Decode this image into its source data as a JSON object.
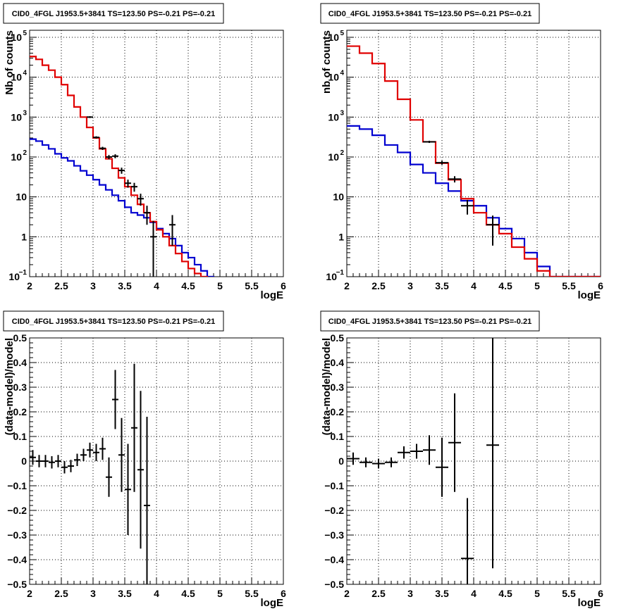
{
  "colors": {
    "model": "#e00000",
    "background_model": "#0000d0",
    "data": "#000000",
    "grid": "#000000"
  },
  "chart_data": [
    {
      "type": "line",
      "scale": "log",
      "title": "CID0_4FGL J1953.5+3841 TS=123.50 PS=-0.21 PS=-0.21",
      "xlabel": "logE",
      "ylabel": "Nb of counts",
      "xlim": [
        2,
        6
      ],
      "ylim": [
        0.1,
        150000
      ],
      "grid": true,
      "x_ticks": [
        "2",
        "2.5",
        "3",
        "3.5",
        "4",
        "4.5",
        "5",
        "5.5",
        "6"
      ],
      "y_ticks": [
        {
          "value": 0.1,
          "base": "10",
          "exp": "−1"
        },
        {
          "value": 1,
          "base": "1",
          "exp": ""
        },
        {
          "value": 10,
          "base": "10",
          "exp": ""
        },
        {
          "value": 100,
          "base": "10",
          "exp": "2"
        },
        {
          "value": 1000,
          "base": "10",
          "exp": "3"
        },
        {
          "value": 10000,
          "base": "10",
          "exp": "4"
        },
        {
          "value": 100000,
          "base": "10",
          "exp": "5"
        }
      ],
      "bin_edges": [
        2.0,
        2.1,
        2.2,
        2.3,
        2.4,
        2.5,
        2.6,
        2.7,
        2.8,
        2.9,
        3.0,
        3.1,
        3.2,
        3.3,
        3.4,
        3.5,
        3.6,
        3.7,
        3.8,
        3.9,
        4.0,
        4.1,
        4.2,
        4.3,
        4.4,
        4.5,
        4.6,
        4.7,
        4.8,
        4.9,
        5.0,
        5.1,
        5.2,
        5.3,
        5.4,
        5.5,
        5.6,
        5.7,
        5.8,
        5.9,
        6.0
      ],
      "series": [
        {
          "role": "model",
          "values": [
            33000,
            28000,
            20000,
            15000,
            10000,
            6500,
            3500,
            1800,
            1000,
            550,
            300,
            160,
            90,
            52,
            30,
            18,
            11,
            6.5,
            4,
            2.4,
            1.5,
            1.0,
            0.6,
            0.38,
            0.24,
            0.16,
            0.12,
            0.1,
            0.09,
            0.08,
            0.07,
            0.07,
            0.07,
            0.07,
            0.07,
            0.07,
            0.07,
            0.07,
            0.07,
            0.07
          ]
        },
        {
          "role": "background",
          "values": [
            280,
            250,
            200,
            160,
            120,
            95,
            80,
            60,
            45,
            35,
            27,
            20,
            15,
            11,
            8,
            5.5,
            4,
            3.5,
            3,
            2.3,
            1.6,
            1.2,
            0.9,
            0.6,
            0.4,
            0.3,
            0.2,
            0.14,
            0.1,
            0.08,
            0.07,
            0.07,
            0.07,
            0.07,
            0.07,
            0.07,
            0.07,
            0.07,
            0.07,
            0.07
          ]
        }
      ],
      "points": [
        {
          "x": 2.95,
          "y": 1000,
          "lo": 950,
          "hi": 1050,
          "xerr": 0.05
        },
        {
          "x": 3.05,
          "y": 310,
          "lo": 290,
          "hi": 330,
          "xerr": 0.05
        },
        {
          "x": 3.15,
          "y": 165,
          "lo": 150,
          "hi": 180,
          "xerr": 0.05
        },
        {
          "x": 3.25,
          "y": 100,
          "lo": 88,
          "hi": 112,
          "xerr": 0.05
        },
        {
          "x": 3.35,
          "y": 105,
          "lo": 93,
          "hi": 117,
          "xerr": 0.05
        },
        {
          "x": 3.45,
          "y": 46,
          "lo": 38,
          "hi": 54,
          "xerr": 0.05
        },
        {
          "x": 3.55,
          "y": 22,
          "lo": 17,
          "hi": 27,
          "xerr": 0.05
        },
        {
          "x": 3.65,
          "y": 18,
          "lo": 13.5,
          "hi": 22.5,
          "xerr": 0.05
        },
        {
          "x": 3.75,
          "y": 9,
          "lo": 6,
          "hi": 12,
          "xerr": 0.05
        },
        {
          "x": 3.85,
          "y": 4,
          "lo": 2,
          "hi": 6,
          "xerr": 0.05
        },
        {
          "x": 3.95,
          "y": 1,
          "lo": 0.05,
          "hi": 2.5,
          "xerr": 0.05
        },
        {
          "x": 4.25,
          "y": 2,
          "lo": 0.6,
          "hi": 3.5,
          "xerr": 0.05
        }
      ]
    },
    {
      "type": "line",
      "scale": "log",
      "title": "CID0_4FGL J1953.5+3841 TS=123.50 PS=-0.21 PS=-0.21",
      "xlabel": "logE",
      "ylabel": "nb of counts",
      "xlim": [
        2,
        6
      ],
      "ylim": [
        0.1,
        150000
      ],
      "grid": true,
      "x_ticks": [
        "2",
        "2.5",
        "3",
        "3.5",
        "4",
        "4.5",
        "5",
        "5.5",
        "6"
      ],
      "y_ticks": [
        {
          "value": 0.1,
          "base": "10",
          "exp": "−1"
        },
        {
          "value": 1,
          "base": "1",
          "exp": ""
        },
        {
          "value": 10,
          "base": "10",
          "exp": ""
        },
        {
          "value": 100,
          "base": "10",
          "exp": "2"
        },
        {
          "value": 1000,
          "base": "10",
          "exp": "3"
        },
        {
          "value": 10000,
          "base": "10",
          "exp": "4"
        },
        {
          "value": 100000,
          "base": "10",
          "exp": "5"
        }
      ],
      "bin_edges": [
        2.0,
        2.2,
        2.4,
        2.6,
        2.8,
        3.0,
        3.2,
        3.4,
        3.6,
        3.8,
        4.0,
        4.2,
        4.4,
        4.6,
        4.8,
        5.0,
        5.2,
        5.4,
        5.6,
        5.8,
        6.0
      ],
      "series": [
        {
          "role": "model",
          "values": [
            60000,
            40000,
            22000,
            8000,
            2800,
            850,
            240,
            70,
            27,
            9,
            4,
            2,
            1.2,
            0.55,
            0.28,
            0.14,
            0.1,
            0.1,
            0.1,
            0.1
          ]
        },
        {
          "role": "background",
          "values": [
            600,
            500,
            350,
            200,
            130,
            65,
            40,
            22,
            14,
            8,
            6,
            3,
            1.6,
            0.9,
            0.4,
            0.18,
            0.1,
            0.1,
            0.1,
            0.1
          ]
        }
      ],
      "points": [
        {
          "x": 3.3,
          "y": 240,
          "lo": 225,
          "hi": 255,
          "xerr": 0.1
        },
        {
          "x": 3.5,
          "y": 72,
          "lo": 64,
          "hi": 80,
          "xerr": 0.1
        },
        {
          "x": 3.7,
          "y": 28,
          "lo": 23,
          "hi": 33,
          "xerr": 0.1
        },
        {
          "x": 3.9,
          "y": 6,
          "lo": 3.6,
          "hi": 8.4,
          "xerr": 0.1
        },
        {
          "x": 4.3,
          "y": 2,
          "lo": 0.6,
          "hi": 3.4,
          "xerr": 0.1
        }
      ]
    },
    {
      "type": "scatter",
      "scale": "linear",
      "title": "CID0_4FGL J1953.5+3841 TS=123.50 PS=-0.21 PS=-0.21",
      "xlabel": "logE",
      "ylabel": "(data-model)/model",
      "xlim": [
        2,
        6
      ],
      "ylim": [
        -0.5,
        0.5
      ],
      "grid": true,
      "x_ticks": [
        "2",
        "2.5",
        "3",
        "3.5",
        "4",
        "4.5",
        "5",
        "5.5",
        "6"
      ],
      "y_ticks": [
        {
          "value": -0.5,
          "label": "−0.5"
        },
        {
          "value": -0.4,
          "label": "−0.4"
        },
        {
          "value": -0.3,
          "label": "−0.3"
        },
        {
          "value": -0.2,
          "label": "−0.2"
        },
        {
          "value": -0.1,
          "label": "−0.1"
        },
        {
          "value": 0,
          "label": "0"
        },
        {
          "value": 0.1,
          "label": "0.1"
        },
        {
          "value": 0.2,
          "label": "0.2"
        },
        {
          "value": 0.3,
          "label": "0.3"
        },
        {
          "value": 0.4,
          "label": "0.4"
        },
        {
          "value": 0.5,
          "label": "0.5"
        }
      ],
      "points": [
        {
          "x": 2.05,
          "y": 0.015,
          "err": 0.03,
          "xerr": 0.05
        },
        {
          "x": 2.15,
          "y": 0.0,
          "err": 0.025,
          "xerr": 0.05
        },
        {
          "x": 2.25,
          "y": 0.0,
          "err": 0.025,
          "xerr": 0.05
        },
        {
          "x": 2.35,
          "y": -0.005,
          "err": 0.025,
          "xerr": 0.05
        },
        {
          "x": 2.45,
          "y": 0.0,
          "err": 0.025,
          "xerr": 0.05
        },
        {
          "x": 2.55,
          "y": -0.025,
          "err": 0.025,
          "xerr": 0.05
        },
        {
          "x": 2.65,
          "y": -0.02,
          "err": 0.025,
          "xerr": 0.05
        },
        {
          "x": 2.75,
          "y": 0.005,
          "err": 0.025,
          "xerr": 0.05
        },
        {
          "x": 2.85,
          "y": 0.025,
          "err": 0.025,
          "xerr": 0.05
        },
        {
          "x": 2.95,
          "y": 0.045,
          "err": 0.03,
          "xerr": 0.05
        },
        {
          "x": 3.05,
          "y": 0.035,
          "err": 0.035,
          "xerr": 0.05
        },
        {
          "x": 3.15,
          "y": 0.05,
          "err": 0.045,
          "xerr": 0.05
        },
        {
          "x": 3.25,
          "y": -0.065,
          "err": 0.08,
          "xerr": 0.05
        },
        {
          "x": 3.35,
          "y": 0.25,
          "err": 0.12,
          "xerr": 0.05
        },
        {
          "x": 3.45,
          "y": 0.025,
          "err": 0.15,
          "xerr": 0.05
        },
        {
          "x": 3.55,
          "y": -0.115,
          "err": 0.185,
          "xerr": 0.05
        },
        {
          "x": 3.65,
          "y": 0.135,
          "err": 0.26,
          "xerr": 0.05
        },
        {
          "x": 3.75,
          "y": -0.035,
          "err": 0.32,
          "xerr": 0.05
        },
        {
          "x": 3.85,
          "y": -0.18,
          "err": 0.36,
          "xerr": 0.05
        }
      ]
    },
    {
      "type": "scatter",
      "scale": "linear",
      "title": "CID0_4FGL J1953.5+3841 TS=123.50 PS=-0.21 PS=-0.21",
      "xlabel": "logE",
      "ylabel": "(data-model)/model",
      "xlim": [
        2,
        6
      ],
      "ylim": [
        -0.5,
        0.5
      ],
      "grid": true,
      "x_ticks": [
        "2",
        "2.5",
        "3",
        "3.5",
        "4",
        "4.5",
        "5",
        "5.5",
        "6"
      ],
      "y_ticks": [
        {
          "value": -0.5,
          "label": "−0.5"
        },
        {
          "value": -0.4,
          "label": "−0.4"
        },
        {
          "value": -0.3,
          "label": "−0.3"
        },
        {
          "value": -0.2,
          "label": "−0.2"
        },
        {
          "value": -0.1,
          "label": "−0.1"
        },
        {
          "value": 0,
          "label": "0"
        },
        {
          "value": 0.1,
          "label": "0.1"
        },
        {
          "value": 0.2,
          "label": "0.2"
        },
        {
          "value": 0.3,
          "label": "0.3"
        },
        {
          "value": 0.4,
          "label": "0.4"
        },
        {
          "value": 0.5,
          "label": "0.5"
        }
      ],
      "points": [
        {
          "x": 2.1,
          "y": 0.01,
          "err": 0.025,
          "xerr": 0.1
        },
        {
          "x": 2.3,
          "y": -0.005,
          "err": 0.02,
          "xerr": 0.1
        },
        {
          "x": 2.5,
          "y": -0.01,
          "err": 0.02,
          "xerr": 0.1
        },
        {
          "x": 2.7,
          "y": -0.005,
          "err": 0.02,
          "xerr": 0.1
        },
        {
          "x": 2.9,
          "y": 0.035,
          "err": 0.025,
          "xerr": 0.1
        },
        {
          "x": 3.1,
          "y": 0.04,
          "err": 0.03,
          "xerr": 0.1
        },
        {
          "x": 3.3,
          "y": 0.045,
          "err": 0.06,
          "xerr": 0.1
        },
        {
          "x": 3.5,
          "y": -0.025,
          "err": 0.12,
          "xerr": 0.1
        },
        {
          "x": 3.7,
          "y": 0.075,
          "err": 0.2,
          "xerr": 0.1
        },
        {
          "x": 3.9,
          "y": -0.395,
          "err": 0.245,
          "xerr": 0.1
        },
        {
          "x": 4.3,
          "y": 0.065,
          "err": 0.5,
          "xerr": 0.1
        }
      ]
    }
  ]
}
